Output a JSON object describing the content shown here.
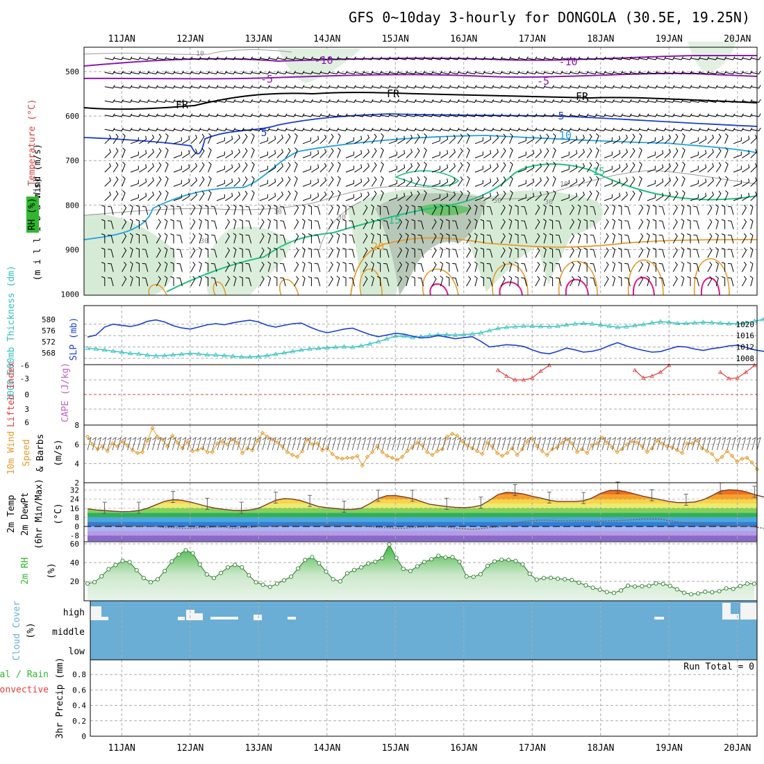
{
  "page": {
    "title": "GFS 0~10day 3-hourly for DONGOLA (30.5E, 19.25N)"
  },
  "colors": {
    "frame": "#000000",
    "grid": "#aaaaaa",
    "slp_line": "#1a3fd0",
    "thickness_line": "#2fbfbf",
    "lifted_index": "#e04040",
    "cape": "#c060c0",
    "wind_speed": "#e59a2a",
    "temperature_curve": "#7a3b2a",
    "dewpoint_curve": "#8b5a4a",
    "rh_fill": "#58c058",
    "cloud_fill": "#6aaed6",
    "precip_total": "#2fb82f",
    "precip_convective": "#e04040"
  },
  "labels": {
    "panel1_rh": "RH (%)",
    "panel1_temp": "Temperature (°C)",
    "panel1_wind": "Wind (m/s)",
    "panel1_millibars": "(m i l l i b a r s)",
    "panel2_thickness": "1000-500mb Thickness (dm)",
    "panel2_slp": "SLP (mb)",
    "panel3_li": "Lifted Index",
    "panel3_cape": "CAPE (J/kg)",
    "panel4_1": "10m Wind",
    "panel4_2": "Speed",
    "panel4_3": "& Barbs",
    "panel4_unit": "(m/s)",
    "panel5_1": "2m Temp",
    "panel5_2": "2m DewPt",
    "panel5_3": "(6hr Min/Max)",
    "panel5_unit": "(°C)",
    "panel6_1": "2m RH",
    "panel6_unit": "(%)",
    "panel7_1": "Cloud Cover",
    "panel7_unit": "(%)",
    "panel8_1": "Total / Rain",
    "panel8_2": "Convective",
    "panel8_3": "3hr Precip (mm)",
    "run_total": "Run Total = 0"
  },
  "dates": [
    "11JAN",
    "12JAN",
    "13JAN",
    "14JAN",
    "15JAN",
    "16JAN",
    "17JAN",
    "18JAN",
    "19JAN",
    "20JAN"
  ],
  "chart_data": [
    {
      "type": "heatmap",
      "name": "upper-air cross section",
      "ylabel": "millibars",
      "yticks": [
        500,
        600,
        700,
        800,
        900,
        1000
      ],
      "ylim": [
        1000,
        450
      ],
      "contour_labels": [
        "-10",
        "-5",
        "FR",
        "5",
        "10",
        "15",
        "20",
        "10",
        "30",
        "50"
      ]
    },
    {
      "type": "line",
      "name": "SLP and thickness",
      "slp_ticks": [
        "1020",
        "1016",
        "1012",
        "1008"
      ],
      "thickness_ticks": [
        "580",
        "576",
        "572",
        "568"
      ],
      "slp_ylim": [
        1006,
        1022
      ],
      "thickness_ylim": [
        565.5,
        582
      ],
      "series": [
        {
          "name": "SLP (mb)",
          "values": [
            1015.5,
            1016.2,
            1019.0,
            1020.0,
            1019.6,
            1019.2,
            1019.8,
            1021.0,
            1021.5,
            1020.8,
            1019.5,
            1018.7,
            1018.3,
            1019.0,
            1019.8,
            1020.2,
            1019.8,
            1020.5,
            1021.0,
            1021.4,
            1020.8,
            1019.6,
            1019.0,
            1019.6,
            1020.2,
            1020.4,
            1019.0,
            1017.8,
            1017.0,
            1017.6,
            1018.3,
            1018.6,
            1017.5,
            1016.4,
            1015.6,
            1016.2,
            1016.8,
            1016.5,
            1015.8,
            1015.2,
            1015.4,
            1016.0,
            1015.5,
            1014.9,
            1015.3,
            1015.6,
            1014.0,
            1012.0,
            1012.4,
            1012.8,
            1012.6,
            1012.2,
            1011.0,
            1010.0,
            1009.6,
            1010.5,
            1011.6,
            1011.0,
            1010.2,
            1010.5,
            1011.2,
            1012.5,
            1013.5,
            1012.4,
            1011.5,
            1010.8,
            1010.2,
            1010.4,
            1011.3,
            1012.2,
            1012.0,
            1011.3,
            1010.8,
            1011.4,
            1011.8,
            1012.4,
            1012.6,
            1011.9,
            1011.0,
            1010.5,
            1010.7,
            1011.2,
            1011.0,
            1010.6,
            1011.8,
            1013.0,
            1012.4,
            1011.0,
            1009.6,
            1009.4,
            1010.5,
            1011.0,
            1010.6,
            1009.6,
            1008.2,
            1007.7,
            1008.5,
            1009.4,
            1009.2,
            1008.6,
            1009.0,
            1009.8,
            1009.6,
            1008.2,
            1007.6,
            1008.0,
            1008.4,
            1008.4,
            1009.0,
            1010.5
          ]
        },
        {
          "name": "1000-500mb Thickness (dm)",
          "values": [
            569.6,
            569.4,
            569.0,
            568.6,
            568.2,
            567.8,
            567.6,
            567.2,
            566.9,
            567.0,
            567.3,
            567.5,
            567.8,
            567.6,
            567.3,
            567.2,
            567.0,
            566.8,
            566.5,
            566.5,
            566.7,
            567.0,
            567.5,
            568.0,
            568.5,
            569.0,
            569.4,
            569.6,
            569.8,
            570.0,
            570.2,
            570.0,
            570.5,
            571.2,
            572.0,
            573.0,
            574.0,
            574.0,
            573.5,
            573.8,
            574.2,
            574.5,
            574.5,
            574.4,
            574.6,
            574.8,
            575.2,
            576.0,
            576.8,
            577.2,
            577.4,
            577.6,
            577.6,
            577.5,
            577.4,
            577.6,
            578.0,
            578.4,
            578.6,
            578.4,
            578.0,
            577.6,
            577.2,
            577.4,
            577.8,
            578.2,
            578.8,
            579.2,
            579.0,
            578.6,
            578.6,
            578.8,
            579.0,
            578.9,
            578.7,
            578.5,
            578.5,
            578.8,
            579.4,
            580.0,
            579.6,
            579.0,
            578.6,
            578.4,
            578.2,
            578.0,
            577.8,
            578.0,
            578.4,
            578.6,
            578.6,
            578.4,
            578.2,
            578.0,
            578.0,
            578.3,
            578.6,
            578.4,
            578.0,
            577.6,
            577.4,
            577.6,
            578.0,
            578.4,
            578.2,
            577.6,
            577.0,
            576.8,
            576.6,
            576.8
          ]
        }
      ]
    },
    {
      "type": "line",
      "name": "Lifted Index and CAPE",
      "li_ticks": [
        "-6",
        "-3",
        "0",
        "3",
        "6"
      ],
      "ylim": [
        -6,
        6
      ],
      "series": [
        {
          "name": "CAPE (J/kg)",
          "segments": [
            {
              "start_index": 48,
              "values": [
                -5.0,
                -3.8,
                -3.0,
                -3.0,
                -3.4,
                -4.8,
                -6.0
              ]
            },
            {
              "start_index": 64,
              "values": [
                -5.0,
                -3.4,
                -3.8,
                -4.6,
                -6.0
              ]
            },
            {
              "start_index": 74,
              "values": [
                -4.6,
                -3.3,
                -3.4,
                -4.6,
                -6.0
              ]
            }
          ]
        }
      ]
    },
    {
      "type": "line",
      "name": "10m wind speed",
      "ylabel": "(m/s)",
      "yticks": [
        2,
        4,
        6,
        8
      ],
      "ylim": [
        2,
        8
      ],
      "series": [
        {
          "name": "10m Wind Speed",
          "values": [
            6.8,
            6.0,
            5.5,
            5.8,
            5.3,
            6.1,
            5.8,
            6.3,
            5.9,
            5.4,
            5.1,
            5.2,
            6.4,
            7.7,
            6.8,
            6.5,
            5.8,
            6.9,
            6.2,
            5.6,
            6.3,
            5.3,
            5.4,
            5.6,
            5.2,
            5.2,
            6.1,
            6.3,
            6.0,
            6.5,
            6.2,
            5.1,
            5.6,
            5.4,
            6.4,
            7.2,
            6.8,
            6.5,
            6.2,
            5.8,
            5.2,
            4.9,
            4.7,
            5.3,
            6.5,
            6.0,
            6.1,
            5.4,
            5.6,
            5.0,
            4.6,
            4.5,
            4.6,
            4.6,
            4.8,
            3.8,
            4.7,
            5.2,
            5.8,
            5.2,
            4.8,
            4.6,
            4.4,
            4.7,
            5.3,
            5.7,
            6.2,
            5.9,
            5.2,
            4.9,
            5.3,
            5.5,
            6.8,
            7.1,
            6.9,
            6.3,
            5.9,
            5.6,
            5.3,
            5.0,
            6.2,
            5.8,
            5.1,
            4.8,
            5.1,
            5.6,
            4.9,
            5.5,
            6.3,
            6.6,
            5.8,
            5.3,
            4.9,
            5.5,
            5.7,
            6.2,
            6.5,
            6.1,
            5.2,
            5.5,
            5.1,
            5.9,
            6.1,
            6.7,
            6.2,
            5.7,
            5.2,
            5.5,
            6.0,
            6.3,
            6.2,
            5.8,
            5.2,
            5.6,
            6.4,
            6.1,
            5.8,
            5.7,
            5.4,
            5.1,
            6.1,
            6.1,
            6.4,
            5.6,
            5.3,
            5.0,
            4.3,
            4.7,
            5.3,
            4.8,
            4.2,
            4.5,
            4.6,
            4.1,
            3.4
          ]
        }
      ]
    },
    {
      "type": "area",
      "name": "2m temperature and dewpoint",
      "ylabel": "(°C)",
      "yticks": [
        32,
        24,
        16,
        8,
        0,
        -8
      ],
      "ylim": [
        -13,
        33
      ],
      "series": [
        {
          "name": "2m Temp",
          "values": [
            15.5,
            14.5,
            14.0,
            13.5,
            13.0,
            13.2,
            14.0,
            16.0,
            19.0,
            22.0,
            23.5,
            23.0,
            21.5,
            19.5,
            17.5,
            16.0,
            15.0,
            14.2,
            14.0,
            14.5,
            16.0,
            19.5,
            23.0,
            24.5,
            24.0,
            22.5,
            20.0,
            17.5,
            16.5,
            15.8,
            15.0,
            15.0,
            16.0,
            20.0,
            24.5,
            27.0,
            27.2,
            26.0,
            24.5,
            22.0,
            19.5,
            18.5,
            17.5,
            16.8,
            16.5,
            17.0,
            18.5,
            23.0,
            28.0,
            30.0,
            29.5,
            28.5,
            26.5,
            25.0,
            23.0,
            22.0,
            22.0,
            22.0,
            22.5,
            25.0,
            29.0,
            31.5,
            31.7,
            30.5,
            28.5,
            26.5,
            25.0,
            23.5,
            22.0,
            21.0,
            21.0,
            21.5,
            23.5,
            27.0,
            31.0,
            32.2,
            31.8,
            30.5,
            28.0,
            26.0,
            24.5,
            23.5,
            23.0,
            22.5,
            23.0,
            25.5,
            29.5,
            32.0,
            32.0,
            31.0,
            28.5,
            25.5,
            23.0,
            21.5,
            20.5,
            20.0,
            20.0,
            20.5,
            22.0,
            26.5,
            30.5,
            31.0,
            30.5,
            29.5,
            27.0,
            24.5,
            22.5,
            21.0,
            20.0,
            19.5,
            19.8,
            21.0,
            23.5,
            28.0,
            31.5,
            32.0,
            31.5,
            30.0,
            27.0,
            24.0,
            21.5,
            20.5,
            19.5,
            19.0,
            19.5,
            20.0
          ]
        },
        {
          "name": "2m DewPt",
          "values": [
            2.5,
            2.0,
            1.5,
            1.0,
            1.0,
            0.5,
            0.5,
            0.0,
            0.0,
            -1.0,
            -1.0,
            -1.5,
            -1.5,
            -1.0,
            -1.0,
            -0.5,
            -0.5,
            -1.5,
            -1.0,
            -1.0,
            0.0,
            0.0,
            0.5,
            1.5,
            2.5,
            2.5,
            2.5,
            2.0,
            2.0,
            1.5,
            1.5,
            1.0,
            0.5,
            0.0,
            -1.0,
            -1.0,
            -1.5,
            -1.5,
            -1.0,
            -0.5,
            -0.5,
            0.0,
            -0.5,
            -1.5,
            -2.0,
            -2.5,
            -2.0,
            -1.0,
            -0.5,
            1.0,
            3.0,
            4.5,
            5.0,
            5.5,
            5.5,
            5.0,
            5.0,
            5.0,
            5.0,
            4.5,
            4.5,
            5.0,
            5.0,
            5.5,
            6.0,
            6.5,
            6.5,
            6.5,
            5.0,
            4.0,
            3.0,
            2.5,
            2.0,
            1.5,
            1.0,
            0.5,
            0.5,
            0.5,
            -0.5,
            -1.5,
            -2.0,
            -2.0,
            -2.5,
            -4.0,
            -5.5,
            -5.5,
            -5.5,
            -6.0,
            -5.0,
            -4.0,
            -3.5,
            -5.5,
            -7.5,
            -7.5,
            -7.0,
            -6.5,
            -7.0,
            -8.0,
            -8.5,
            -8.0,
            -8.0,
            -8.0,
            -8.5,
            -9.0,
            -8.5,
            -8.0,
            -8.0,
            -8.0,
            -8.0,
            -8.5,
            -8.5,
            -8.5,
            -9.0,
            -9.0,
            -8.0,
            -7.5,
            -7.0,
            -7.0,
            -7.5,
            -8.5,
            -8.5,
            -9.0,
            -7.5,
            -7.0
          ]
        }
      ]
    },
    {
      "type": "area",
      "name": "2m relative humidity",
      "ylabel": "(%)",
      "yticks": [
        20,
        40,
        60
      ],
      "ylim": [
        0,
        63
      ],
      "series": [
        {
          "name": "2m RH",
          "values": [
            17.6,
            19.1,
            25.4,
            33.0,
            37.4,
            41.8,
            40.5,
            31.9,
            23.5,
            19.1,
            22.2,
            31.0,
            41.3,
            48.6,
            53.1,
            50.0,
            38.0,
            27.3,
            23.5,
            29.0,
            35.0,
            37.5,
            35.0,
            26.4,
            19.0,
            16.4,
            14.1,
            17.5,
            21.1,
            25.0,
            33.7,
            42.8,
            45.8,
            39.4,
            30.3,
            22.2,
            20.0,
            28.6,
            32.1,
            34.9,
            39.0,
            40.9,
            44.7,
            59.3,
            45.0,
            33.3,
            31.0,
            36.0,
            40.7,
            43.6,
            47.1,
            45.5,
            45.8,
            41.0,
            25.2,
            24.8,
            27.6,
            36.5,
            41.2,
            43.0,
            42.8,
            41.7,
            38.2,
            28.1,
            21.8,
            23.5,
            23.8,
            22.8,
            22.2,
            21.4,
            18.6,
            15.8,
            13.2,
            11.1,
            8.6,
            7.7,
            10.3,
            15.3,
            14.5,
            14.8,
            15.2,
            17.9,
            17.3,
            15.2,
            11.5,
            7.8,
            6.3,
            7.1,
            8.9,
            8.4,
            9.5,
            12.5,
            12.0,
            15.0,
            17.5,
            17.4
          ]
        }
      ]
    },
    {
      "type": "bar",
      "name": "cloud cover",
      "ylabel": "(%)",
      "layers": [
        "high",
        "middle",
        "low"
      ],
      "description_values": "cloud-free gaps in the high layer near 11JAN, 12JAN, 13JAN, 14JAN, 19JAN and 20JAN"
    },
    {
      "type": "bar",
      "name": "3hr precipitation",
      "ylabel": "3hr Precip (mm)",
      "yticks": [
        "0",
        "0.2",
        "0.4",
        "0.6",
        "0.8"
      ],
      "ylim": [
        0,
        1
      ],
      "run_total": "Run Total = 0",
      "series": [
        {
          "name": "Total / Rain",
          "values": []
        },
        {
          "name": "Convective",
          "values": []
        }
      ]
    }
  ]
}
